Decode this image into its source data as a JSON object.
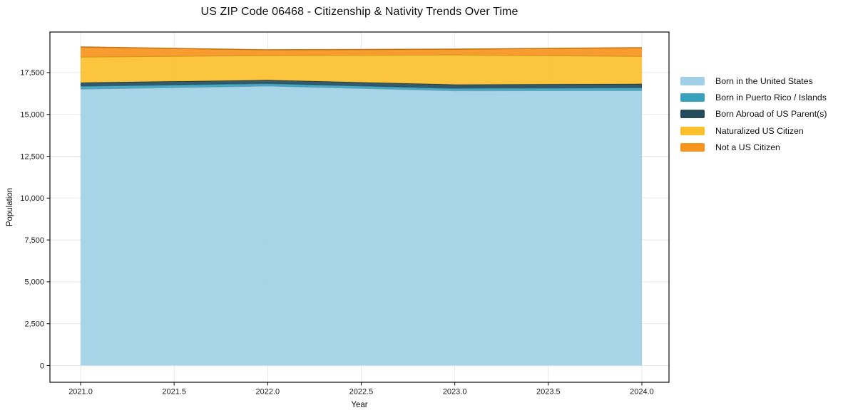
{
  "title": "US ZIP Code 06468 - Citizenship & Nativity Trends Over Time",
  "chart_data": {
    "type": "area",
    "stacked": true,
    "title": "US ZIP Code 06468 - Citizenship & Nativity Trends Over Time",
    "xlabel": "Year",
    "ylabel": "Population",
    "x": [
      2021,
      2022,
      2023,
      2024
    ],
    "series": [
      {
        "name": "Born in the United States",
        "color": "#a1d0e6",
        "values": [
          16520,
          16700,
          16420,
          16430
        ]
      },
      {
        "name": "Born in Puerto Rico / Islands",
        "color": "#39a3bf",
        "values": [
          170,
          145,
          140,
          170
        ]
      },
      {
        "name": "Born Abroad of US Parent(s)",
        "color": "#254b5c",
        "values": [
          210,
          210,
          225,
          225
        ]
      },
      {
        "name": "Naturalized US Citizen",
        "color": "#fbc02d",
        "values": [
          1530,
          1470,
          1780,
          1650
        ]
      },
      {
        "name": "Not a US Citizen",
        "color": "#f7941d",
        "values": [
          595,
          330,
          330,
          510
        ]
      }
    ],
    "totals": [
      19025,
      18855,
      18895,
      18985
    ],
    "xlim": [
      2020.836,
      2024.145
    ],
    "ylim": [
      -1000,
      19920
    ],
    "xticks": [
      2021.0,
      2021.5,
      2022.0,
      2022.5,
      2023.0,
      2023.5,
      2024.0
    ],
    "xtick_labels": [
      "2021.0",
      "2021.5",
      "2022.0",
      "2022.5",
      "2023.0",
      "2023.5",
      "2024.0"
    ],
    "yticks": [
      0,
      2500,
      5000,
      7500,
      10000,
      12500,
      15000,
      17500
    ],
    "ytick_labels": [
      "0",
      "2,500",
      "5,000",
      "7,500",
      "10,000",
      "12,500",
      "15,000",
      "17,500"
    ],
    "grid": true,
    "legend_position": "right-outside"
  },
  "colors": {
    "axis": "#1a1a1a",
    "grid": "#dcdcdc",
    "tick_text": "#1a1a1a",
    "background": "#ffffff"
  }
}
